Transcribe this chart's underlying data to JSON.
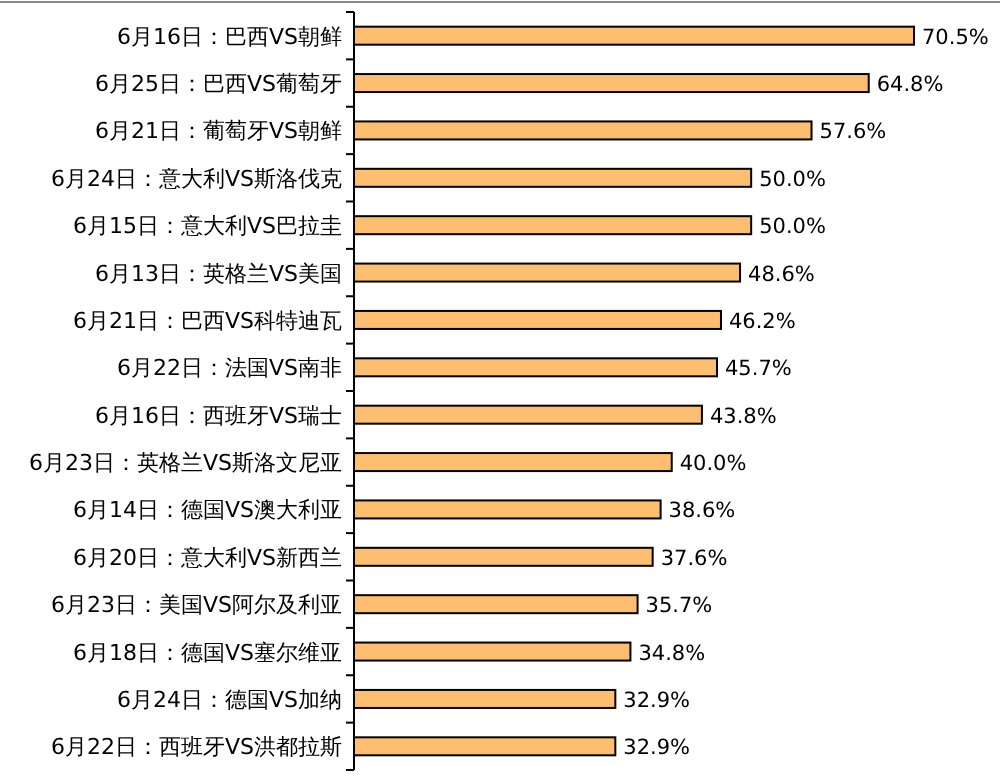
{
  "chart_data": {
    "type": "bar",
    "orientation": "horizontal",
    "data_labels": true,
    "categories": [
      "6月16日：巴西VS朝鲜",
      "6月25日：巴西VS葡萄牙",
      "6月21日：葡萄牙VS朝鲜",
      "6月24日：意大利VS斯洛伐克",
      "6月15日：意大利VS巴拉圭",
      "6月13日：英格兰VS美国",
      "6月21日：巴西VS科特迪瓦",
      "6月22日：法国VS南非",
      "6月16日：西班牙VS瑞士",
      "6月23日：英格兰VS斯洛文尼亚",
      "6月14日：德国VS澳大利亚",
      "6月20日：意大利VS新西兰",
      "6月23日：美国VS阿尔及利亚",
      "6月18日：德国VS塞尔维亚",
      "6月24日：德国VS加纳",
      "6月22日：西班牙VS洪都拉斯"
    ],
    "values": [
      70.5,
      64.8,
      57.6,
      50.0,
      50.0,
      48.6,
      46.2,
      45.7,
      43.8,
      40.0,
      38.6,
      37.6,
      35.7,
      34.8,
      32.9,
      32.9
    ],
    "value_labels": [
      "70.5%",
      "64.8%",
      "57.6%",
      "50.0%",
      "50.0%",
      "48.6%",
      "46.2%",
      "45.7%",
      "43.8%",
      "40.0%",
      "38.6%",
      "37.6%",
      "35.7%",
      "34.8%",
      "32.9%",
      "32.9%"
    ],
    "color": "#fdbf6f"
  }
}
